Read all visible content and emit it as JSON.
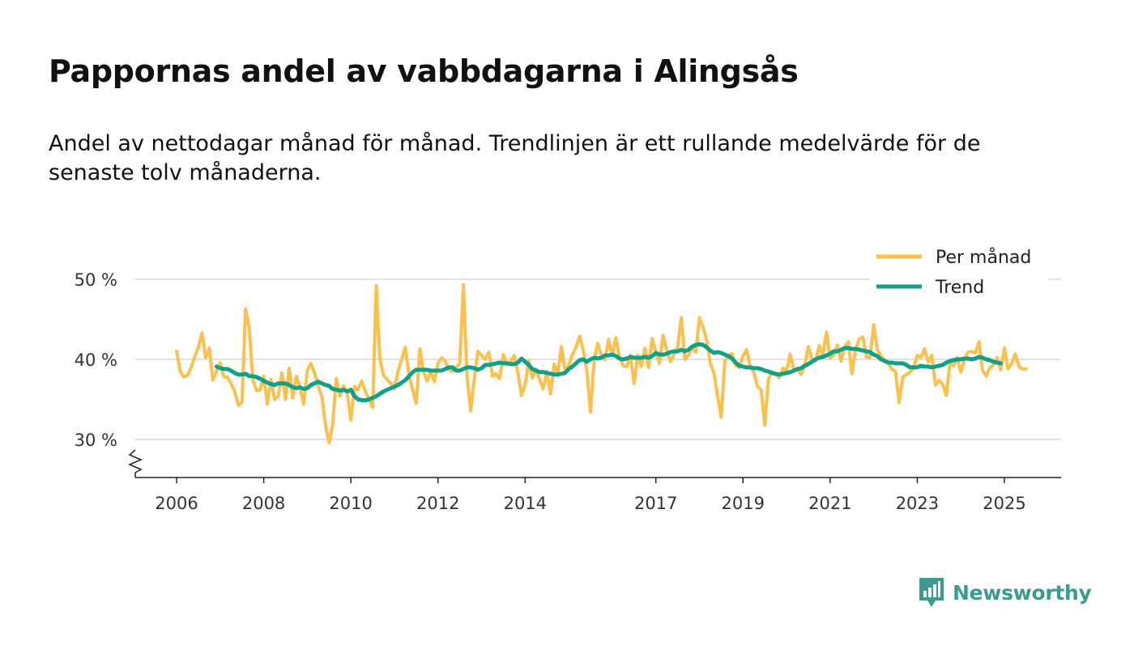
{
  "title": "Pappornas andel av vabbdagarna i Alingsås",
  "subtitle": "Andel av nettodagar månad för månad. Trendlinjen är ett rullande medelvärde för de senaste tolv månaderna.",
  "brand": {
    "name": "Newsworthy",
    "color": "#3d9a8e"
  },
  "chart_data": {
    "type": "line",
    "title": "Pappornas andel av vabbdagarna i Alingsås",
    "xlabel": "",
    "ylabel": "",
    "ylim": [
      25,
      50
    ],
    "y_ticks": [
      30,
      40,
      50
    ],
    "y_tick_labels": [
      "30 %",
      "40 %",
      "50 %"
    ],
    "x_ticks": [
      2006,
      2008,
      2010,
      2012,
      2014,
      2017,
      2019,
      2021,
      2023,
      2025
    ],
    "x_tick_labels": [
      "2006",
      "2008",
      "2010",
      "2012",
      "2014",
      "2017",
      "2019",
      "2021",
      "2023",
      "2025"
    ],
    "grid": true,
    "legend": "top-right",
    "start": 2006.0,
    "step": 0.0833333,
    "series": [
      {
        "name": "Per månad",
        "color": "#fbc04d",
        "values": [
          41,
          38.5,
          37.8,
          38,
          39,
          40.3,
          41.5,
          43.3,
          40.2,
          41.4,
          37.4,
          38.5,
          39.6,
          37.8,
          37.8,
          37,
          36,
          34.3,
          34.6,
          46.3,
          44,
          37.5,
          36.1,
          36.2,
          37.9,
          34.4,
          37.5,
          35,
          35.4,
          38.3,
          35,
          38.9,
          35.2,
          37.9,
          36.5,
          34.4,
          38.6,
          39.5,
          38.3,
          36.7,
          35.4,
          31.8,
          29.6,
          31.9,
          37.6,
          35.4,
          36.7,
          35.8,
          32.4,
          36.6,
          36.2,
          37.3,
          36,
          35,
          34,
          49.2,
          40,
          38,
          37.5,
          37,
          36.3,
          38.5,
          40,
          41.5,
          38,
          36.2,
          34.5,
          41.3,
          38.5,
          37.3,
          38.5,
          37.2,
          39.5,
          40.2,
          39.8,
          38.7,
          38.5,
          39,
          39.5,
          49.3,
          37.8,
          33.6,
          37.6,
          41,
          40.5,
          40,
          40.9,
          37.9,
          38.2,
          37.6,
          40.6,
          39.4,
          39.8,
          40.5,
          38.3,
          35.5,
          36.8,
          39.8,
          37.7,
          38.8,
          37.5,
          36.3,
          38.5,
          35.7,
          39.4,
          38.2,
          41.6,
          38.6,
          39.2,
          40.6,
          41.5,
          42.9,
          41.2,
          38.6,
          33.4,
          40,
          42,
          40.5,
          40,
          42.5,
          40.5,
          42.7,
          40.2,
          39.2,
          39.1,
          40.5,
          37,
          40.5,
          39.1,
          41.4,
          39,
          42.6,
          40.9,
          39.5,
          43,
          41.2,
          39.7,
          40.6,
          41.5,
          45.2,
          40,
          40.5,
          41.5,
          40.9,
          45.2,
          44,
          42.4,
          39.5,
          38.3,
          35.4,
          32.8,
          39.8,
          40.5,
          40.7,
          39.2,
          39,
          40.4,
          41.2,
          39,
          38.4,
          36.6,
          36.2,
          31.8,
          37.5,
          38.5,
          38.1,
          37.7,
          38.9,
          38.5,
          40.7,
          38.7,
          38.7,
          38.1,
          39.2,
          41.6,
          40.1,
          39.8,
          41.7,
          40.6,
          43.4,
          40.2,
          40.5,
          41.8,
          39.8,
          41.5,
          42.2,
          38.2,
          41.2,
          42.5,
          42.8,
          40.3,
          40.2,
          44.3,
          41.2,
          40.4,
          39.9,
          39.5,
          38.8,
          38.5,
          34.6,
          37.8,
          38.1,
          38.4,
          38.9,
          40.5,
          40.2,
          41.3,
          39.7,
          40.5,
          36.8,
          37.4,
          36.9,
          35.5,
          39.5,
          39.2,
          40.2,
          38.4,
          39.9,
          40.9,
          41,
          40.8,
          42.2,
          38.6,
          37.9,
          39,
          39.3,
          40.2,
          38.7,
          41.4,
          38.8,
          39.5,
          40.7,
          39.1,
          38.8,
          38.8
        ]
      },
      {
        "name": "Trend",
        "color": "#12a08b",
        "start": 2006.9167,
        "values": [
          39.1,
          38.9,
          38.8,
          38.8,
          38.6,
          38.3,
          38.1,
          38.1,
          38.2,
          37.9,
          37.9,
          37.8,
          37.6,
          37.3,
          37.1,
          36.9,
          36.8,
          37,
          37,
          37,
          36.8,
          36.5,
          36.4,
          36.5,
          36.3,
          36.4,
          36.8,
          37,
          37.2,
          37,
          36.8,
          36.7,
          36.3,
          36.2,
          36.1,
          36.2,
          36,
          36.2,
          35.4,
          35,
          34.9,
          34.9,
          35,
          35.2,
          35.4,
          35.7,
          36,
          36.2,
          36.4,
          36.6,
          36.8,
          37.1,
          37.4,
          37.9,
          38.4,
          38.7,
          38.7,
          38.7,
          38.7,
          38.6,
          38.6,
          38.6,
          38.6,
          38.8,
          39,
          39,
          38.6,
          38.6,
          38.8,
          39,
          39,
          38.9,
          38.7,
          38.9,
          39.3,
          39.3,
          39.4,
          39.5,
          39.6,
          39.5,
          39.5,
          39.4,
          39.4,
          39.6,
          40.1,
          39.7,
          39.3,
          38.8,
          38.6,
          38.4,
          38.4,
          38.3,
          38.2,
          38.1,
          38.1,
          38.2,
          38.3,
          38.8,
          39.1,
          39.5,
          39.9,
          40,
          39.7,
          40,
          40.2,
          40.1,
          40.2,
          40.5,
          40.5,
          40.6,
          40.4,
          40.1,
          40,
          40.1,
          40.3,
          40.2,
          40.2,
          40.2,
          40.3,
          40.2,
          40.4,
          40.8,
          40.6,
          40.6,
          40.7,
          40.9,
          41,
          41,
          41.2,
          41,
          41.2,
          41.6,
          41.8,
          41.9,
          41.8,
          41.5,
          41.1,
          40.8,
          40.9,
          40.8,
          40.6,
          40.4,
          40.1,
          39.6,
          39.2,
          39.1,
          39,
          39,
          38.9,
          38.9,
          38.8,
          38.6,
          38.5,
          38.3,
          38.2,
          38.1,
          38.2,
          38.3,
          38.4,
          38.6,
          38.8,
          38.9,
          39.2,
          39.4,
          39.7,
          40,
          40.2,
          40.3,
          40.5,
          40.7,
          41,
          41,
          41.2,
          41.4,
          41.4,
          41.3,
          41.3,
          41.2,
          41.1,
          41,
          40.9,
          40.6,
          40.4,
          40,
          39.8,
          39.6,
          39.6,
          39.5,
          39.5,
          39.5,
          39.3,
          39,
          39,
          39,
          39.2,
          39.1,
          39.1,
          39,
          39.1,
          39.2,
          39.3,
          39.6,
          39.8,
          39.9,
          40,
          40,
          40.1,
          40.1,
          40,
          40.1,
          40.3,
          40.2,
          40,
          39.9,
          39.7,
          39.6,
          39.5
        ]
      }
    ]
  }
}
